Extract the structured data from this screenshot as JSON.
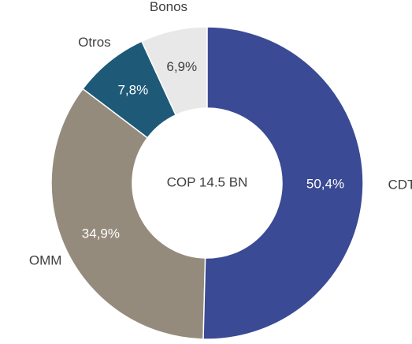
{
  "chart_data": {
    "type": "donut",
    "categories": [
      "CDT",
      "OMM",
      "Otros",
      "Bonos"
    ],
    "values": [
      50.4,
      34.9,
      7.8,
      6.9
    ],
    "value_labels": [
      "50,4%",
      "34,9%",
      "7,8%",
      "6,9%"
    ],
    "colors": [
      "#3a4a94",
      "#958b7c",
      "#1e5a78",
      "#e8e8e8"
    ],
    "annotation": "COP 14.5 BN"
  }
}
